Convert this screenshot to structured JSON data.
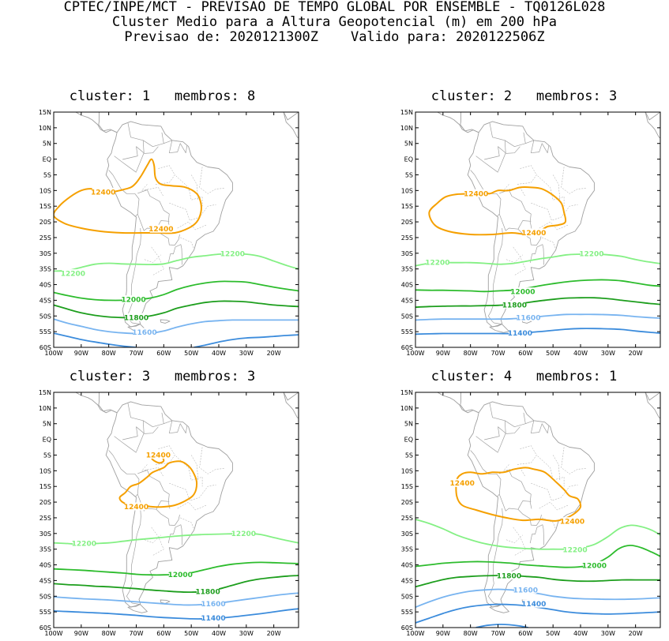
{
  "header": {
    "line1": "CPTEC/INPE/MCT - PREVISAO DE TEMPO GLOBAL POR ENSEMBLE - TQ0126L028",
    "line2": "Cluster Medio para a Altura Geopotencial (m) em 200 hPa",
    "line3": "Previsao de: 2020121300Z    Valido para: 2020122506Z"
  },
  "lat_labels": [
    "15N",
    "10N",
    "5N",
    "EQ",
    "5S",
    "10S",
    "15S",
    "20S",
    "25S",
    "30S",
    "35S",
    "40S",
    "45S",
    "50S",
    "55S",
    "60S"
  ],
  "lon_labels": [
    "100W",
    "90W",
    "80W",
    "70W",
    "60W",
    "50W",
    "40W",
    "30W",
    "20W"
  ],
  "colors": {
    "c12400": "#f5a000",
    "c12200": "#84f084",
    "c12000": "#2dbc2d",
    "c11800": "#1d9e1d",
    "c11600": "#78b4f0",
    "c11400": "#3c8cdc",
    "coast": "#a0a0a0"
  },
  "panels": [
    {
      "title": "cluster: 1   membros: 8",
      "labels": [
        {
          "text": "12400",
          "lon": -82,
          "lat": -10.5,
          "color": "c12400"
        },
        {
          "text": "12400",
          "lon": -61,
          "lat": -22.3,
          "color": "c12400"
        },
        {
          "text": "12200",
          "lon": -93,
          "lat": -36.5,
          "color": "c12200"
        },
        {
          "text": "12200",
          "lon": -35,
          "lat": -30.2,
          "color": "c12200"
        },
        {
          "text": "12000",
          "lon": -71,
          "lat": -44.8,
          "color": "c12000"
        },
        {
          "text": "11800",
          "lon": -70,
          "lat": -50.5,
          "color": "c11800"
        },
        {
          "text": "11600",
          "lon": -67,
          "lat": -55.2,
          "color": "c11600"
        }
      ]
    },
    {
      "title": "cluster: 2   membros: 3",
      "labels": [
        {
          "text": "12400",
          "lon": -78,
          "lat": -11,
          "color": "c12400"
        },
        {
          "text": "12400",
          "lon": -57,
          "lat": -23.5,
          "color": "c12400"
        },
        {
          "text": "12200",
          "lon": -92,
          "lat": -33,
          "color": "c12200"
        },
        {
          "text": "12200",
          "lon": -36,
          "lat": -30.2,
          "color": "c12200"
        },
        {
          "text": "12000",
          "lon": -61,
          "lat": -42.3,
          "color": "c12000"
        },
        {
          "text": "11800",
          "lon": -64,
          "lat": -46.5,
          "color": "c11800"
        },
        {
          "text": "11600",
          "lon": -59,
          "lat": -50.5,
          "color": "c11600"
        },
        {
          "text": "11400",
          "lon": -62,
          "lat": -55.5,
          "color": "c11400"
        }
      ]
    },
    {
      "title": "cluster: 3   membros: 3",
      "labels": [
        {
          "text": "12400",
          "lon": -62,
          "lat": -5,
          "color": "c12400"
        },
        {
          "text": "12400",
          "lon": -70,
          "lat": -21.5,
          "color": "c12400"
        },
        {
          "text": "12200",
          "lon": -89,
          "lat": -33.2,
          "color": "c12200"
        },
        {
          "text": "12200",
          "lon": -31,
          "lat": -30,
          "color": "c12200"
        },
        {
          "text": "12000",
          "lon": -54,
          "lat": -43.2,
          "color": "c12000"
        },
        {
          "text": "11800",
          "lon": -44,
          "lat": -48.5,
          "color": "c11800"
        },
        {
          "text": "11600",
          "lon": -42,
          "lat": -52.5,
          "color": "c11600"
        },
        {
          "text": "11400",
          "lon": -42,
          "lat": -57,
          "color": "c11400"
        }
      ]
    },
    {
      "title": "cluster: 4   membros: 1",
      "labels": [
        {
          "text": "12400",
          "lon": -83,
          "lat": -14,
          "color": "c12400"
        },
        {
          "text": "12400",
          "lon": -43,
          "lat": -26.2,
          "color": "c12400"
        },
        {
          "text": "12200",
          "lon": -42,
          "lat": -35.2,
          "color": "c12200"
        },
        {
          "text": "12000",
          "lon": -35,
          "lat": -40.2,
          "color": "c12000"
        },
        {
          "text": "11800",
          "lon": -66,
          "lat": -43.5,
          "color": "c11800"
        },
        {
          "text": "11600",
          "lon": -60,
          "lat": -48,
          "color": "c11600"
        },
        {
          "text": "11400",
          "lon": -57,
          "lat": -52.5,
          "color": "c11400"
        }
      ]
    }
  ]
}
